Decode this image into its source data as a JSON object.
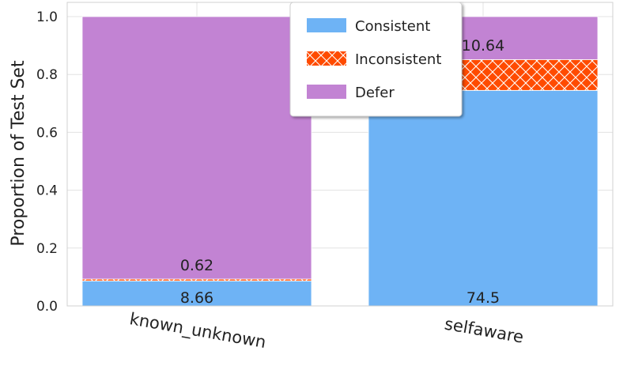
{
  "chart_data": {
    "type": "bar",
    "stacked": true,
    "categories": [
      "known_unknown",
      "selfaware"
    ],
    "series": [
      {
        "name": "Consistent",
        "values": [
          0.0866,
          0.745
        ],
        "color": "#6eb3f5",
        "pattern": "solid"
      },
      {
        "name": "Inconsistent",
        "values": [
          0.0062,
          0.1064
        ],
        "color": "#ff4b00",
        "pattern": "crosshatch"
      },
      {
        "name": "Defer",
        "values": [
          0.9072,
          0.1486
        ],
        "color": "#c283d3",
        "pattern": "solid"
      }
    ],
    "data_labels": [
      {
        "category": "known_unknown",
        "series": "Consistent",
        "text": "8.66"
      },
      {
        "category": "known_unknown",
        "series": "Inconsistent",
        "text": "0.62"
      },
      {
        "category": "selfaware",
        "series": "Consistent",
        "text": "74.5"
      },
      {
        "category": "selfaware",
        "series": "Inconsistent",
        "text": "10.64"
      }
    ],
    "ylabel": "Proportion of Test Set",
    "xlabel": "",
    "ylim": [
      0,
      1.0
    ],
    "yticks": [
      "0.0",
      "0.2",
      "0.4",
      "0.6",
      "0.8",
      "1.0"
    ],
    "grid": true,
    "legend_position": "top-center"
  }
}
